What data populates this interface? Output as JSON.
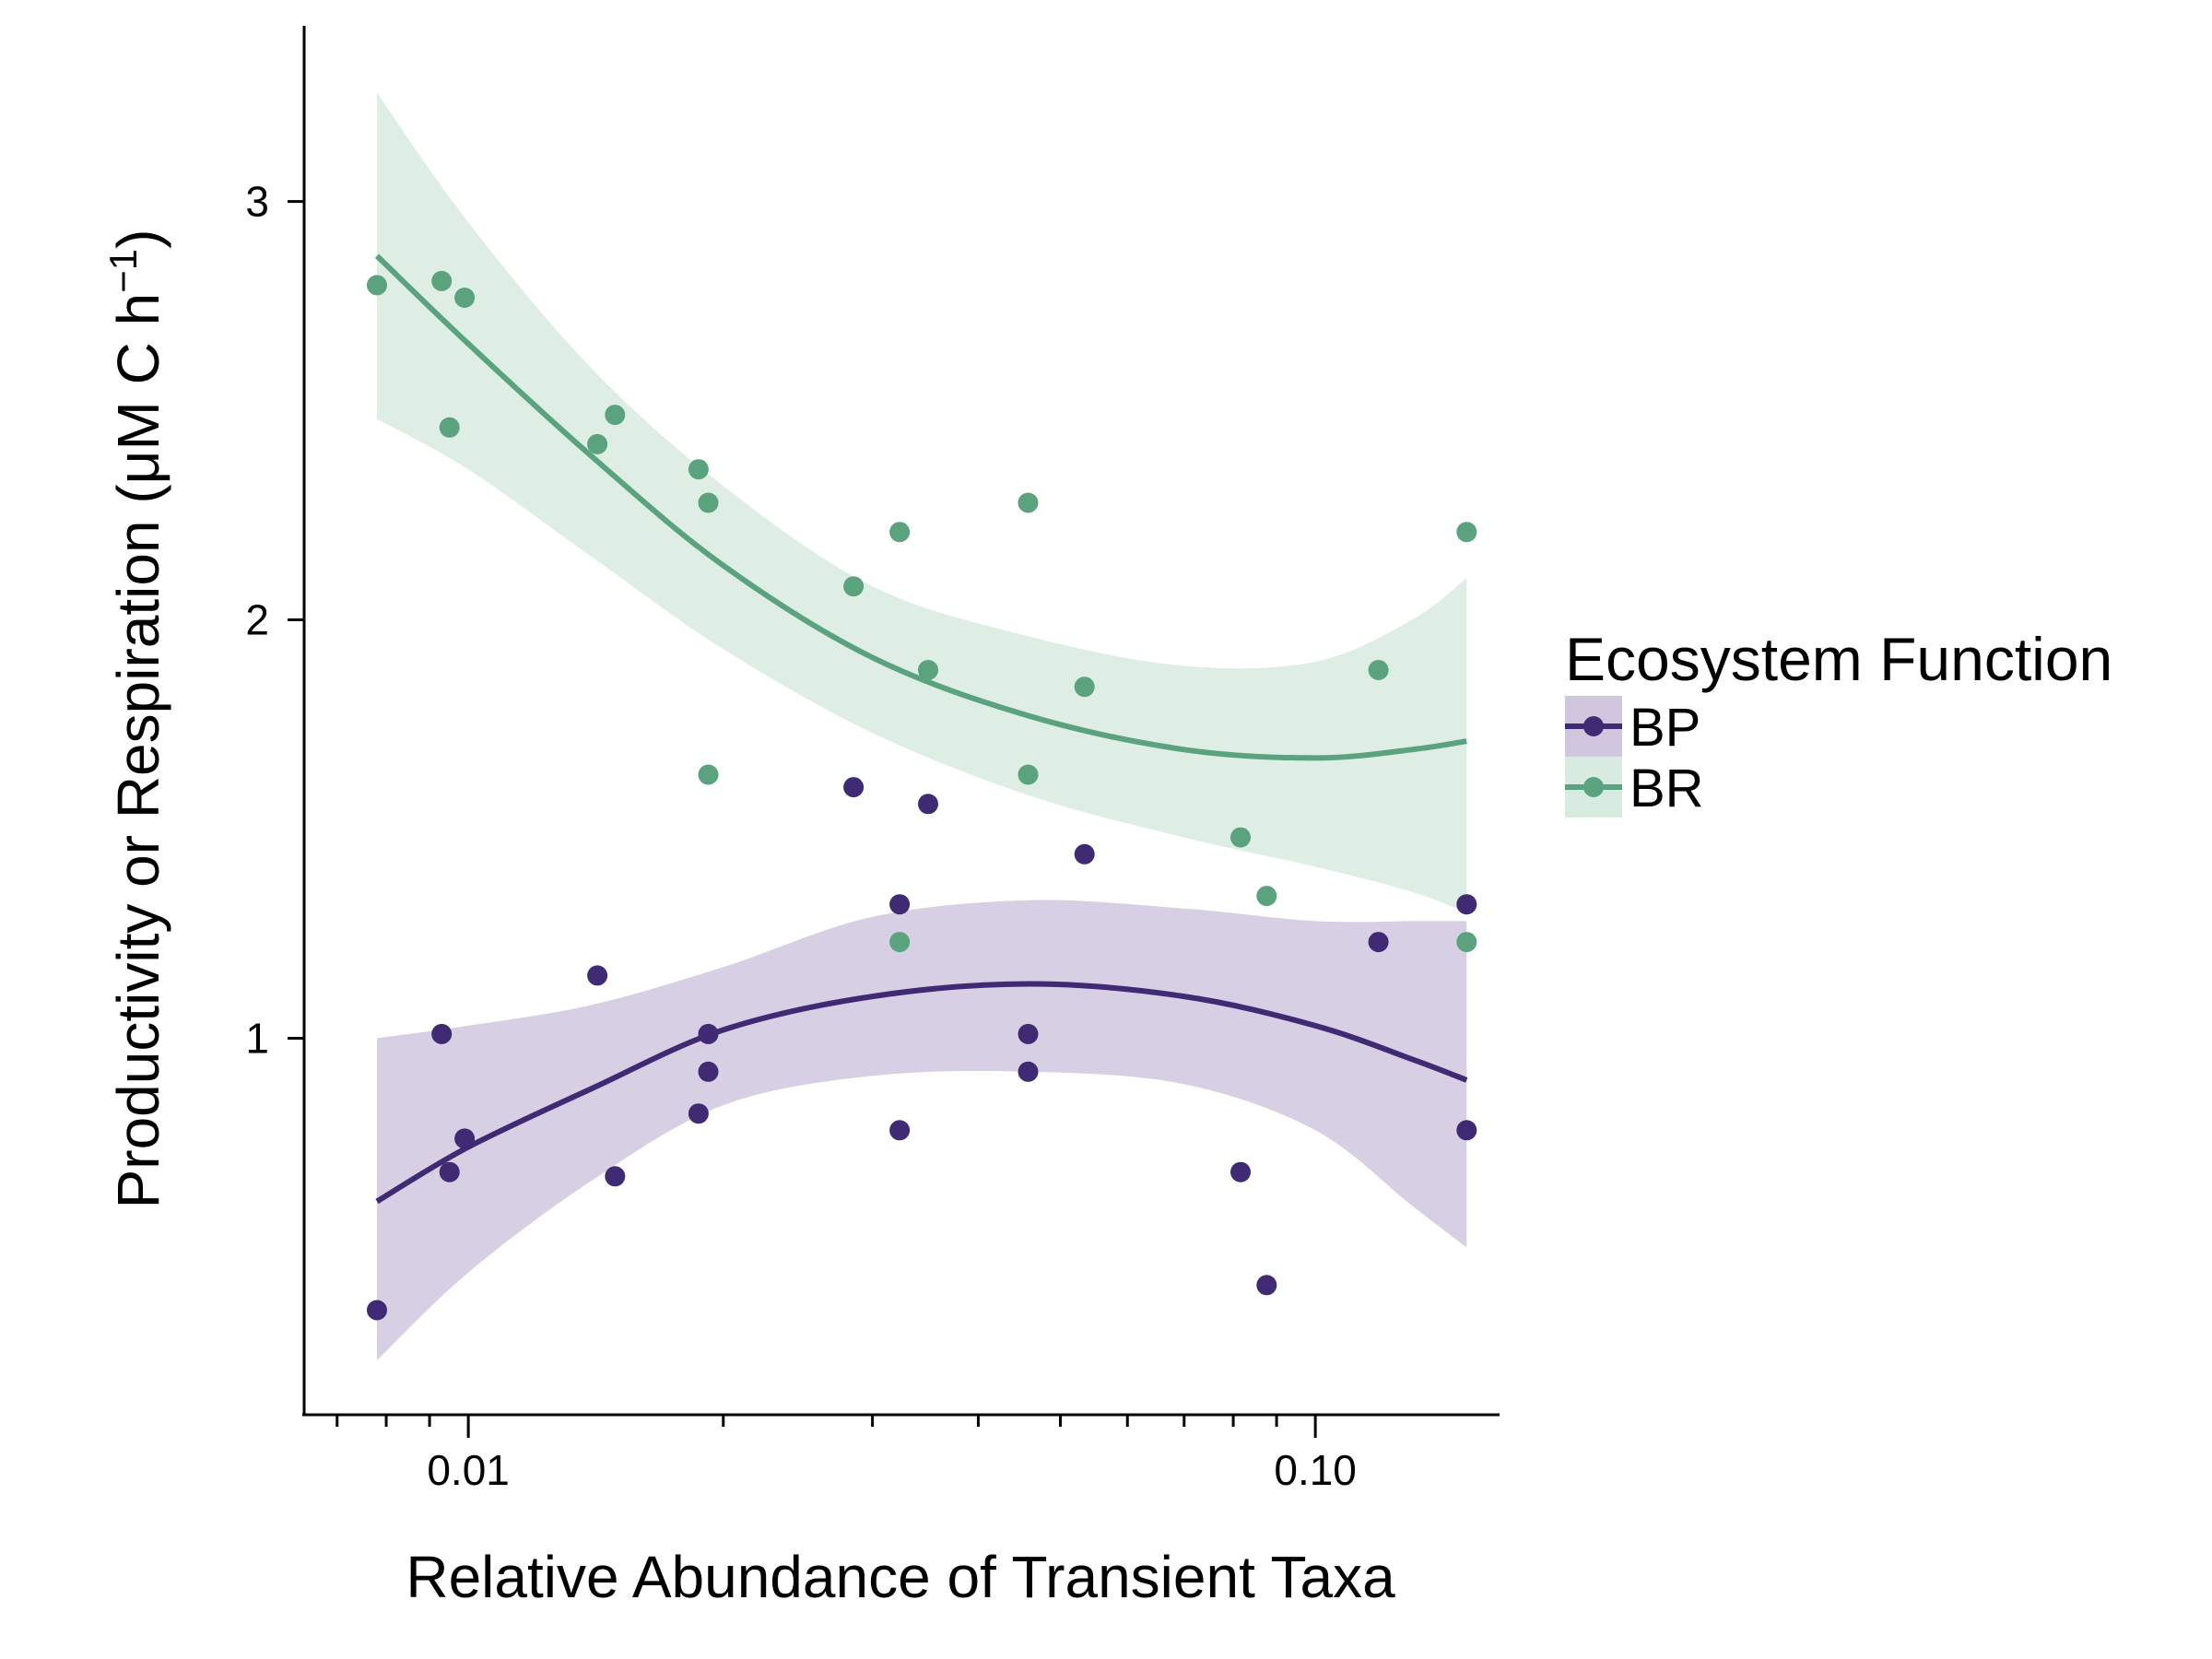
{
  "chart_data": {
    "type": "scatter",
    "title": "",
    "xlabel": "Relative Abundance of Transient Taxa",
    "ylabel": "Productivity or Respiration (μM C h−1)",
    "ylabel_parts": {
      "main": "Productivity or Respiration (μM C h",
      "sup": "−1",
      "close": ")"
    },
    "x_scale": "log10",
    "xlim": [
      0.0064,
      0.165
    ],
    "ylim": [
      0.1,
      3.42
    ],
    "x_ticks": [
      {
        "value": 0.01,
        "label": "0.01"
      },
      {
        "value": 0.1,
        "label": "0.10"
      }
    ],
    "x_minor_ticks": [
      0.007,
      0.008,
      0.009,
      0.02,
      0.03,
      0.04,
      0.05,
      0.06,
      0.07,
      0.08,
      0.09
    ],
    "y_ticks": [
      {
        "value": 1,
        "label": "1"
      },
      {
        "value": 2,
        "label": "2"
      },
      {
        "value": 3,
        "label": "3"
      }
    ],
    "grid": false,
    "legend": {
      "title": "Ecosystem Function",
      "position": "right"
    },
    "series": [
      {
        "name": "BP",
        "color": "#3f2a73",
        "band_color": "#d0c7de",
        "points": [
          {
            "x": 0.0078,
            "y": 0.35
          },
          {
            "x": 0.0093,
            "y": 1.01
          },
          {
            "x": 0.0095,
            "y": 0.68
          },
          {
            "x": 0.0099,
            "y": 0.76
          },
          {
            "x": 0.0142,
            "y": 1.15
          },
          {
            "x": 0.0149,
            "y": 0.67
          },
          {
            "x": 0.0187,
            "y": 0.82
          },
          {
            "x": 0.0192,
            "y": 1.01
          },
          {
            "x": 0.0192,
            "y": 0.92
          },
          {
            "x": 0.0285,
            "y": 1.6
          },
          {
            "x": 0.0323,
            "y": 1.32
          },
          {
            "x": 0.0323,
            "y": 0.78
          },
          {
            "x": 0.0349,
            "y": 1.56
          },
          {
            "x": 0.0458,
            "y": 1.01
          },
          {
            "x": 0.0458,
            "y": 0.92
          },
          {
            "x": 0.0534,
            "y": 1.44
          },
          {
            "x": 0.0816,
            "y": 0.68
          },
          {
            "x": 0.0876,
            "y": 0.41
          },
          {
            "x": 0.1187,
            "y": 1.23
          },
          {
            "x": 0.1509,
            "y": 1.32
          },
          {
            "x": 0.1509,
            "y": 0.78
          }
        ],
        "fit": [
          {
            "x": 0.0078,
            "y": 0.61
          },
          {
            "x": 0.01,
            "y": 0.74
          },
          {
            "x": 0.014,
            "y": 0.88
          },
          {
            "x": 0.02,
            "y": 1.02
          },
          {
            "x": 0.03,
            "y": 1.1
          },
          {
            "x": 0.046,
            "y": 1.13
          },
          {
            "x": 0.07,
            "y": 1.1
          },
          {
            "x": 0.1,
            "y": 1.03
          },
          {
            "x": 0.13,
            "y": 0.95
          },
          {
            "x": 0.1509,
            "y": 0.9
          }
        ],
        "ci_upper": [
          {
            "x": 0.0078,
            "y": 1.0
          },
          {
            "x": 0.01,
            "y": 1.03
          },
          {
            "x": 0.014,
            "y": 1.08
          },
          {
            "x": 0.02,
            "y": 1.17
          },
          {
            "x": 0.03,
            "y": 1.29
          },
          {
            "x": 0.046,
            "y": 1.33
          },
          {
            "x": 0.07,
            "y": 1.31
          },
          {
            "x": 0.1,
            "y": 1.28
          },
          {
            "x": 0.13,
            "y": 1.28
          },
          {
            "x": 0.1509,
            "y": 1.28
          }
        ],
        "ci_lower": [
          {
            "x": 0.0078,
            "y": 0.23
          },
          {
            "x": 0.01,
            "y": 0.44
          },
          {
            "x": 0.014,
            "y": 0.66
          },
          {
            "x": 0.02,
            "y": 0.84
          },
          {
            "x": 0.03,
            "y": 0.91
          },
          {
            "x": 0.046,
            "y": 0.92
          },
          {
            "x": 0.07,
            "y": 0.89
          },
          {
            "x": 0.1,
            "y": 0.78
          },
          {
            "x": 0.13,
            "y": 0.6
          },
          {
            "x": 0.1509,
            "y": 0.5
          }
        ]
      },
      {
        "name": "BR",
        "color": "#5aa37e",
        "band_color": "#d8ebe0",
        "points": [
          {
            "x": 0.0078,
            "y": 2.8
          },
          {
            "x": 0.0093,
            "y": 2.81
          },
          {
            "x": 0.0095,
            "y": 2.46
          },
          {
            "x": 0.0099,
            "y": 2.77
          },
          {
            "x": 0.0142,
            "y": 2.42
          },
          {
            "x": 0.0149,
            "y": 2.49
          },
          {
            "x": 0.0187,
            "y": 2.36
          },
          {
            "x": 0.0192,
            "y": 2.28
          },
          {
            "x": 0.0192,
            "y": 1.63
          },
          {
            "x": 0.0285,
            "y": 2.08
          },
          {
            "x": 0.0323,
            "y": 2.21
          },
          {
            "x": 0.0323,
            "y": 1.23
          },
          {
            "x": 0.0349,
            "y": 1.88
          },
          {
            "x": 0.0458,
            "y": 2.28
          },
          {
            "x": 0.0458,
            "y": 1.63
          },
          {
            "x": 0.0534,
            "y": 1.84
          },
          {
            "x": 0.0816,
            "y": 1.48
          },
          {
            "x": 0.0876,
            "y": 1.34
          },
          {
            "x": 0.1187,
            "y": 1.88
          },
          {
            "x": 0.1509,
            "y": 2.21
          },
          {
            "x": 0.1509,
            "y": 1.23
          }
        ],
        "fit": [
          {
            "x": 0.0078,
            "y": 2.87
          },
          {
            "x": 0.01,
            "y": 2.66
          },
          {
            "x": 0.014,
            "y": 2.39
          },
          {
            "x": 0.02,
            "y": 2.13
          },
          {
            "x": 0.03,
            "y": 1.91
          },
          {
            "x": 0.046,
            "y": 1.77
          },
          {
            "x": 0.07,
            "y": 1.69
          },
          {
            "x": 0.1,
            "y": 1.67
          },
          {
            "x": 0.13,
            "y": 1.69
          },
          {
            "x": 0.1509,
            "y": 1.71
          }
        ],
        "ci_upper": [
          {
            "x": 0.0078,
            "y": 3.26
          },
          {
            "x": 0.01,
            "y": 2.95
          },
          {
            "x": 0.014,
            "y": 2.6
          },
          {
            "x": 0.02,
            "y": 2.32
          },
          {
            "x": 0.03,
            "y": 2.08
          },
          {
            "x": 0.046,
            "y": 1.96
          },
          {
            "x": 0.07,
            "y": 1.89
          },
          {
            "x": 0.1,
            "y": 1.9
          },
          {
            "x": 0.13,
            "y": 2.0
          },
          {
            "x": 0.1509,
            "y": 2.1
          }
        ],
        "ci_lower": [
          {
            "x": 0.0078,
            "y": 2.48
          },
          {
            "x": 0.01,
            "y": 2.36
          },
          {
            "x": 0.014,
            "y": 2.15
          },
          {
            "x": 0.02,
            "y": 1.93
          },
          {
            "x": 0.03,
            "y": 1.73
          },
          {
            "x": 0.046,
            "y": 1.58
          },
          {
            "x": 0.07,
            "y": 1.48
          },
          {
            "x": 0.1,
            "y": 1.41
          },
          {
            "x": 0.13,
            "y": 1.35
          },
          {
            "x": 0.1509,
            "y": 1.3
          }
        ]
      }
    ]
  }
}
